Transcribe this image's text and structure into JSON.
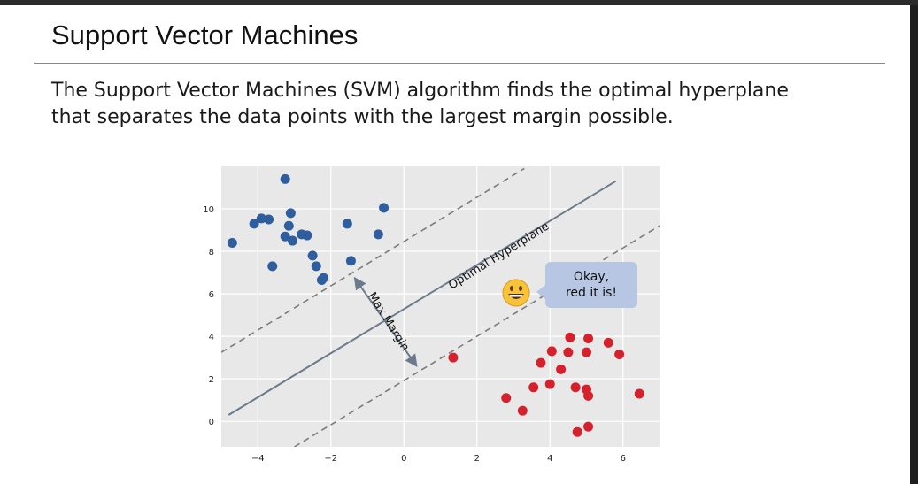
{
  "slide": {
    "title": "Support Vector Machines",
    "body_lines": [
      "The Support Vector Machines (SVM) algorithm finds the optimal hyperplane",
      "that separates the data points with the largest margin possible."
    ],
    "bubble_lines": [
      "Okay,",
      "red it is!"
    ],
    "emoji_icon": "grinning-face-icon"
  },
  "chart_data": {
    "type": "scatter",
    "xlim": [
      -5.0,
      7.0
    ],
    "ylim": [
      -1.2,
      12.0
    ],
    "grid": true,
    "background": "#e8e8e8",
    "x_ticks": [
      -4,
      -2,
      0,
      2,
      4,
      6
    ],
    "x_tick_labels": [
      "−4",
      "−2",
      "0",
      "2",
      "4",
      "6"
    ],
    "y_ticks": [
      0,
      2,
      4,
      6,
      8,
      10
    ],
    "y_tick_labels": [
      "0",
      "2",
      "4",
      "6",
      "8",
      "10"
    ],
    "series": [
      {
        "color": "#2e5e9e",
        "points": [
          [
            -4.7,
            8.4
          ],
          [
            -4.1,
            9.3
          ],
          [
            -3.9,
            9.55
          ],
          [
            -3.7,
            9.5
          ],
          [
            -3.6,
            7.3
          ],
          [
            -3.25,
            11.4
          ],
          [
            -3.25,
            8.7
          ],
          [
            -3.15,
            9.2
          ],
          [
            -3.1,
            9.8
          ],
          [
            -3.05,
            8.5
          ],
          [
            -2.8,
            8.8
          ],
          [
            -2.65,
            8.75
          ],
          [
            -2.5,
            7.8
          ],
          [
            -2.4,
            7.3
          ],
          [
            -2.25,
            6.65
          ],
          [
            -2.2,
            6.75
          ],
          [
            -1.55,
            9.3
          ],
          [
            -1.45,
            7.55
          ],
          [
            -0.7,
            8.8
          ],
          [
            -0.55,
            10.05
          ]
        ]
      },
      {
        "color": "#d6202b",
        "points": [
          [
            1.35,
            3.0
          ],
          [
            2.8,
            1.1
          ],
          [
            3.25,
            0.5
          ],
          [
            3.55,
            1.6
          ],
          [
            3.75,
            2.75
          ],
          [
            4.0,
            1.75
          ],
          [
            4.05,
            3.3
          ],
          [
            4.3,
            2.45
          ],
          [
            4.5,
            3.25
          ],
          [
            4.55,
            3.95
          ],
          [
            4.7,
            1.6
          ],
          [
            4.75,
            -0.5
          ],
          [
            5.0,
            3.25
          ],
          [
            5.0,
            1.5
          ],
          [
            5.05,
            3.9
          ],
          [
            5.05,
            1.2
          ],
          [
            5.05,
            -0.25
          ],
          [
            5.6,
            3.7
          ],
          [
            5.9,
            3.15
          ],
          [
            6.45,
            1.3
          ]
        ]
      }
    ],
    "lines": [
      {
        "role": "hyperplane",
        "from": [
          -4.8,
          0.3
        ],
        "to": [
          5.8,
          11.3
        ],
        "style": "solid",
        "color": "#6b7b8c"
      },
      {
        "role": "margin",
        "from": [
          -5.0,
          3.25
        ],
        "to": [
          3.3,
          11.9
        ],
        "style": "dashed",
        "color": "#7b7b7b"
      },
      {
        "role": "margin",
        "from": [
          -3.0,
          -1.2
        ],
        "to": [
          7.0,
          9.2
        ],
        "style": "dashed",
        "color": "#7b7b7b"
      }
    ],
    "annotations": [
      {
        "text": "Optimal Hyperplane",
        "x": 2.65,
        "y": 7.65,
        "angle": -32
      },
      {
        "text": "Max Margin",
        "x": -0.5,
        "y": 4.6,
        "angle": 58
      }
    ],
    "arrow": {
      "from": [
        -1.35,
        6.75
      ],
      "to": [
        0.35,
        2.6
      ],
      "color": "#6b7b8c"
    }
  }
}
